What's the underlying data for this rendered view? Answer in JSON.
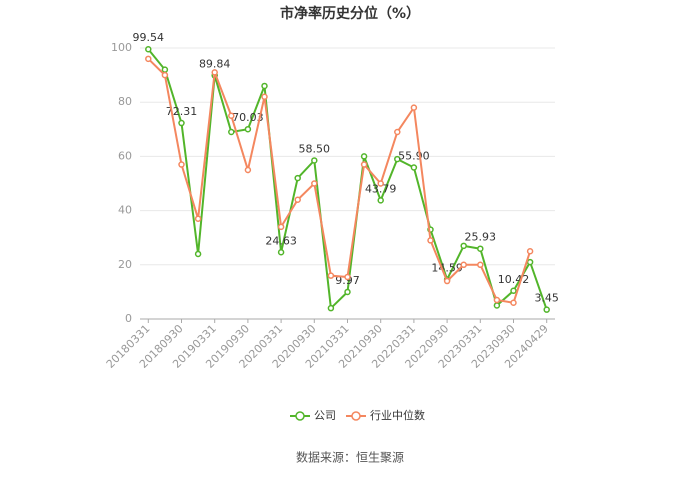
{
  "chart_data": {
    "type": "line",
    "title": "市净率历史分位（%）",
    "categories": [
      "20180331",
      null,
      "20180930",
      null,
      "20190331",
      null,
      "20190930",
      null,
      "20200331",
      null,
      "20200930",
      null,
      "20210331",
      null,
      "20210930",
      null,
      "20220331",
      null,
      "20220930",
      null,
      "20230331",
      null,
      "20230930",
      null,
      "20240429"
    ],
    "series": [
      {
        "name": "公司",
        "color": "#52b52a",
        "values": [
          99.54,
          92,
          72.31,
          24,
          89.84,
          69,
          70.03,
          86,
          24.63,
          52,
          58.5,
          4,
          9.97,
          60,
          43.79,
          59,
          55.9,
          33,
          14.59,
          27,
          25.93,
          5,
          10.42,
          21,
          3.45
        ],
        "value_labels": [
          "99.54",
          null,
          "72.31",
          null,
          "89.84",
          null,
          "70.03",
          null,
          "24.63",
          null,
          "58.50",
          null,
          "9.97",
          null,
          "43.79",
          null,
          "55.90",
          null,
          "14.59",
          null,
          "25.93",
          null,
          "10.42",
          null,
          "3.45"
        ]
      },
      {
        "name": "行业中位数",
        "color": "#f4875f",
        "values": [
          96,
          90,
          57,
          37,
          91,
          75,
          55,
          82,
          34,
          44,
          50,
          16,
          15.5,
          57,
          50,
          69,
          78,
          29,
          14,
          20,
          20,
          7,
          6,
          25,
          null
        ]
      }
    ],
    "ylim": [
      0,
      100
    ],
    "yticks": [
      0,
      20,
      40,
      60,
      80,
      100
    ],
    "grid": true,
    "source": "数据来源：恒生聚源"
  }
}
